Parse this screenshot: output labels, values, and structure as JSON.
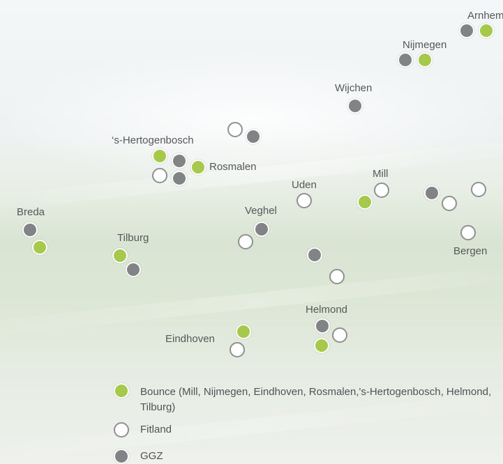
{
  "cities": {
    "arnhem": "Arnhem",
    "nijmegen": "Nijmegen",
    "wijchen": "Wijchen",
    "s_hertogenbosch": "‘s-Hertogenbosch",
    "rosmalen": "Rosmalen",
    "uden": "Uden",
    "mill": "Mill",
    "breda": "Breda",
    "veghel": "Veghel",
    "tilburg": "Tilburg",
    "bergen": "Bergen",
    "helmond": "Helmond",
    "eindhoven": "Eindhoven"
  },
  "legend": {
    "bounce": "Bounce (Mill, Nijmegen, Eindhoven, Rosmalen,'s-Hertogenbosch, Helmond, Tilburg)",
    "fitland": "Fitland",
    "ggz": "GGZ"
  },
  "colors": {
    "bounce": "#a6c94b",
    "fitland": "#ffffff",
    "ggz": "#818385"
  }
}
